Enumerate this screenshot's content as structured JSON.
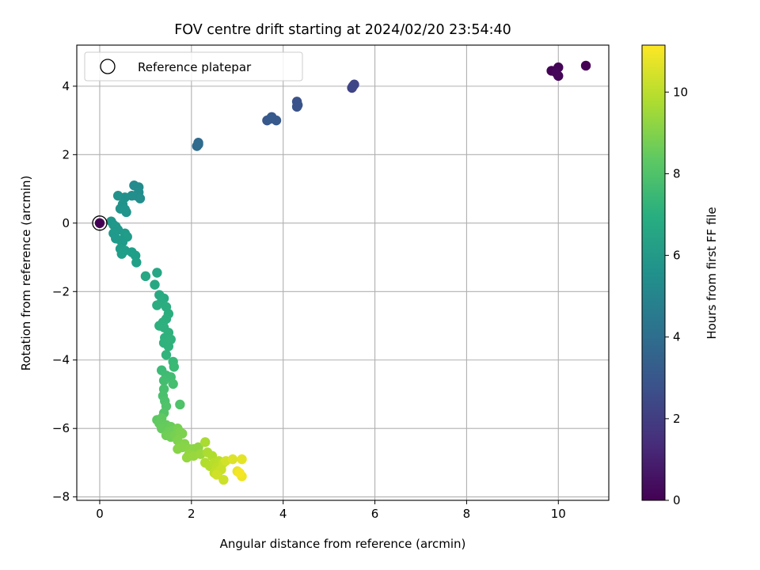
{
  "chart_data": {
    "type": "scatter",
    "title": "FOV centre drift starting at 2024/02/20 23:54:40",
    "xlabel": "Angular distance from reference (arcmin)",
    "ylabel": "Rotation from reference (arcmin)",
    "xlim": [
      -0.5,
      11.1
    ],
    "ylim": [
      -8.1,
      5.2
    ],
    "xticks": [
      0,
      2,
      4,
      6,
      8,
      10
    ],
    "yticks": [
      -8,
      -6,
      -4,
      -2,
      0,
      2,
      4
    ],
    "grid": true,
    "legend": {
      "location": "upper-left",
      "entries": [
        {
          "label": "Reference platepar",
          "marker": "open-circle"
        }
      ]
    },
    "reference_point": {
      "x": 0,
      "y": 0
    },
    "colorbar": {
      "label": "Hours from first FF file",
      "colormap": "viridis",
      "range": [
        0,
        11.15
      ],
      "ticks": [
        0,
        2,
        4,
        6,
        8,
        10
      ]
    },
    "points": [
      {
        "x": 10.6,
        "y": 4.6,
        "h": 0.0
      },
      {
        "x": 9.85,
        "y": 4.45,
        "h": 0.05
      },
      {
        "x": 10.0,
        "y": 4.55,
        "h": 0.1
      },
      {
        "x": 10.0,
        "y": 4.3,
        "h": 0.15
      },
      {
        "x": 9.95,
        "y": 4.4,
        "h": 0.2
      },
      {
        "x": 5.5,
        "y": 3.95,
        "h": 2.2
      },
      {
        "x": 5.55,
        "y": 4.05,
        "h": 2.3
      },
      {
        "x": 5.52,
        "y": 4.0,
        "h": 2.35
      },
      {
        "x": 4.3,
        "y": 3.55,
        "h": 2.8
      },
      {
        "x": 4.3,
        "y": 3.4,
        "h": 2.85
      },
      {
        "x": 4.32,
        "y": 3.45,
        "h": 2.9
      },
      {
        "x": 3.65,
        "y": 3.0,
        "h": 3.0
      },
      {
        "x": 3.75,
        "y": 3.1,
        "h": 3.05
      },
      {
        "x": 3.85,
        "y": 3.0,
        "h": 3.1
      },
      {
        "x": 3.72,
        "y": 3.05,
        "h": 3.15
      },
      {
        "x": 2.15,
        "y": 2.35,
        "h": 3.8
      },
      {
        "x": 2.12,
        "y": 2.25,
        "h": 3.85
      },
      {
        "x": 2.15,
        "y": 2.3,
        "h": 3.9
      },
      {
        "x": 0.75,
        "y": 1.1,
        "h": 5.3
      },
      {
        "x": 0.85,
        "y": 1.05,
        "h": 5.35
      },
      {
        "x": 0.85,
        "y": 0.9,
        "h": 5.4
      },
      {
        "x": 0.8,
        "y": 0.8,
        "h": 5.45
      },
      {
        "x": 0.88,
        "y": 0.72,
        "h": 5.5
      },
      {
        "x": 0.7,
        "y": 0.8,
        "h": 5.55
      },
      {
        "x": 0.55,
        "y": 0.75,
        "h": 5.6
      },
      {
        "x": 0.4,
        "y": 0.8,
        "h": 5.65
      },
      {
        "x": 0.5,
        "y": 0.55,
        "h": 5.7
      },
      {
        "x": 0.45,
        "y": 0.42,
        "h": 5.72
      },
      {
        "x": 0.58,
        "y": 0.32,
        "h": 5.75
      },
      {
        "x": 0.55,
        "y": 0.4,
        "h": 5.8
      },
      {
        "x": 0.25,
        "y": 0.05,
        "h": 5.85
      },
      {
        "x": 0.3,
        "y": -0.05,
        "h": 5.9
      },
      {
        "x": 0.35,
        "y": -0.1,
        "h": 5.92
      },
      {
        "x": 0.4,
        "y": -0.2,
        "h": 5.95
      },
      {
        "x": 0.3,
        "y": -0.3,
        "h": 6.0
      },
      {
        "x": 0.35,
        "y": -0.45,
        "h": 6.02
      },
      {
        "x": 0.45,
        "y": -0.5,
        "h": 6.05
      },
      {
        "x": 0.55,
        "y": -0.3,
        "h": 6.08
      },
      {
        "x": 0.6,
        "y": -0.4,
        "h": 6.1
      },
      {
        "x": 0.5,
        "y": -0.55,
        "h": 6.12
      },
      {
        "x": 0.45,
        "y": -0.75,
        "h": 6.15
      },
      {
        "x": 0.55,
        "y": -0.8,
        "h": 6.18
      },
      {
        "x": 0.48,
        "y": -0.9,
        "h": 6.2
      },
      {
        "x": 0.7,
        "y": -0.85,
        "h": 6.22
      },
      {
        "x": 0.78,
        "y": -0.95,
        "h": 6.25
      },
      {
        "x": 0.8,
        "y": -1.15,
        "h": 6.3
      },
      {
        "x": 1.25,
        "y": -1.45,
        "h": 6.6
      },
      {
        "x": 1.0,
        "y": -1.55,
        "h": 6.65
      },
      {
        "x": 1.2,
        "y": -1.8,
        "h": 6.7
      },
      {
        "x": 1.3,
        "y": -2.1,
        "h": 6.75
      },
      {
        "x": 1.4,
        "y": -2.2,
        "h": 6.8
      },
      {
        "x": 1.35,
        "y": -2.3,
        "h": 6.85
      },
      {
        "x": 1.25,
        "y": -2.4,
        "h": 6.9
      },
      {
        "x": 1.45,
        "y": -2.45,
        "h": 6.92
      },
      {
        "x": 1.5,
        "y": -2.65,
        "h": 6.95
      },
      {
        "x": 1.45,
        "y": -2.8,
        "h": 7.0
      },
      {
        "x": 1.38,
        "y": -2.9,
        "h": 7.02
      },
      {
        "x": 1.3,
        "y": -3.0,
        "h": 7.05
      },
      {
        "x": 1.4,
        "y": -3.05,
        "h": 7.08
      },
      {
        "x": 1.5,
        "y": -3.2,
        "h": 7.1
      },
      {
        "x": 1.42,
        "y": -3.35,
        "h": 7.12
      },
      {
        "x": 1.4,
        "y": -3.5,
        "h": 7.15
      },
      {
        "x": 1.5,
        "y": -3.6,
        "h": 7.18
      },
      {
        "x": 1.55,
        "y": -3.4,
        "h": 7.2
      },
      {
        "x": 1.45,
        "y": -3.85,
        "h": 7.25
      },
      {
        "x": 1.6,
        "y": -4.05,
        "h": 7.5
      },
      {
        "x": 1.62,
        "y": -4.2,
        "h": 7.55
      },
      {
        "x": 1.35,
        "y": -4.3,
        "h": 7.6
      },
      {
        "x": 1.45,
        "y": -4.45,
        "h": 7.65
      },
      {
        "x": 1.55,
        "y": -4.5,
        "h": 7.7
      },
      {
        "x": 1.4,
        "y": -4.6,
        "h": 7.75
      },
      {
        "x": 1.6,
        "y": -4.7,
        "h": 7.8
      },
      {
        "x": 1.4,
        "y": -4.85,
        "h": 7.85
      },
      {
        "x": 1.38,
        "y": -5.05,
        "h": 7.9
      },
      {
        "x": 1.42,
        "y": -5.2,
        "h": 7.95
      },
      {
        "x": 1.75,
        "y": -5.3,
        "h": 8.0
      },
      {
        "x": 1.45,
        "y": -5.35,
        "h": 8.05
      },
      {
        "x": 1.4,
        "y": -5.55,
        "h": 8.1
      },
      {
        "x": 1.25,
        "y": -5.75,
        "h": 8.3
      },
      {
        "x": 1.35,
        "y": -5.7,
        "h": 8.35
      },
      {
        "x": 1.3,
        "y": -5.85,
        "h": 8.4
      },
      {
        "x": 1.45,
        "y": -5.9,
        "h": 8.45
      },
      {
        "x": 1.35,
        "y": -6.0,
        "h": 8.5
      },
      {
        "x": 1.55,
        "y": -5.95,
        "h": 8.55
      },
      {
        "x": 1.5,
        "y": -6.1,
        "h": 8.6
      },
      {
        "x": 1.6,
        "y": -6.05,
        "h": 8.65
      },
      {
        "x": 1.45,
        "y": -6.2,
        "h": 8.7
      },
      {
        "x": 1.55,
        "y": -6.25,
        "h": 8.75
      },
      {
        "x": 1.7,
        "y": -6.0,
        "h": 8.8
      },
      {
        "x": 1.65,
        "y": -6.2,
        "h": 8.85
      },
      {
        "x": 1.75,
        "y": -6.1,
        "h": 8.9
      },
      {
        "x": 1.8,
        "y": -6.15,
        "h": 8.92
      },
      {
        "x": 1.7,
        "y": -6.35,
        "h": 8.95
      },
      {
        "x": 1.75,
        "y": -6.5,
        "h": 9.0
      },
      {
        "x": 1.85,
        "y": -6.45,
        "h": 9.05
      },
      {
        "x": 1.8,
        "y": -6.55,
        "h": 9.1
      },
      {
        "x": 1.7,
        "y": -6.6,
        "h": 9.12
      },
      {
        "x": 1.95,
        "y": -6.6,
        "h": 9.15
      },
      {
        "x": 2.05,
        "y": -6.6,
        "h": 9.2
      },
      {
        "x": 2.15,
        "y": -6.55,
        "h": 9.25
      },
      {
        "x": 1.95,
        "y": -6.75,
        "h": 9.3
      },
      {
        "x": 1.9,
        "y": -6.85,
        "h": 9.35
      },
      {
        "x": 2.05,
        "y": -6.8,
        "h": 9.4
      },
      {
        "x": 2.2,
        "y": -6.75,
        "h": 9.45
      },
      {
        "x": 2.3,
        "y": -6.4,
        "h": 9.7
      },
      {
        "x": 2.35,
        "y": -6.7,
        "h": 9.75
      },
      {
        "x": 2.45,
        "y": -6.8,
        "h": 9.8
      },
      {
        "x": 2.3,
        "y": -7.0,
        "h": 9.85
      },
      {
        "x": 2.4,
        "y": -7.1,
        "h": 9.9
      },
      {
        "x": 2.5,
        "y": -7.0,
        "h": 9.95
      },
      {
        "x": 2.6,
        "y": -6.95,
        "h": 10.0
      },
      {
        "x": 2.55,
        "y": -7.15,
        "h": 10.05
      },
      {
        "x": 2.5,
        "y": -7.3,
        "h": 10.1
      },
      {
        "x": 2.6,
        "y": -7.25,
        "h": 10.15
      },
      {
        "x": 2.7,
        "y": -7.0,
        "h": 10.2
      },
      {
        "x": 2.65,
        "y": -7.2,
        "h": 10.25
      },
      {
        "x": 2.7,
        "y": -7.5,
        "h": 10.3
      },
      {
        "x": 2.55,
        "y": -7.35,
        "h": 10.35
      },
      {
        "x": 2.75,
        "y": -6.95,
        "h": 10.4
      },
      {
        "x": 2.9,
        "y": -6.9,
        "h": 10.6
      },
      {
        "x": 3.1,
        "y": -6.9,
        "h": 10.7
      },
      {
        "x": 3.0,
        "y": -7.25,
        "h": 10.8
      },
      {
        "x": 3.1,
        "y": -7.4,
        "h": 10.9
      },
      {
        "x": 3.05,
        "y": -7.3,
        "h": 11.0
      },
      {
        "x": 0.0,
        "y": 0.0,
        "h": 0.0
      }
    ]
  }
}
